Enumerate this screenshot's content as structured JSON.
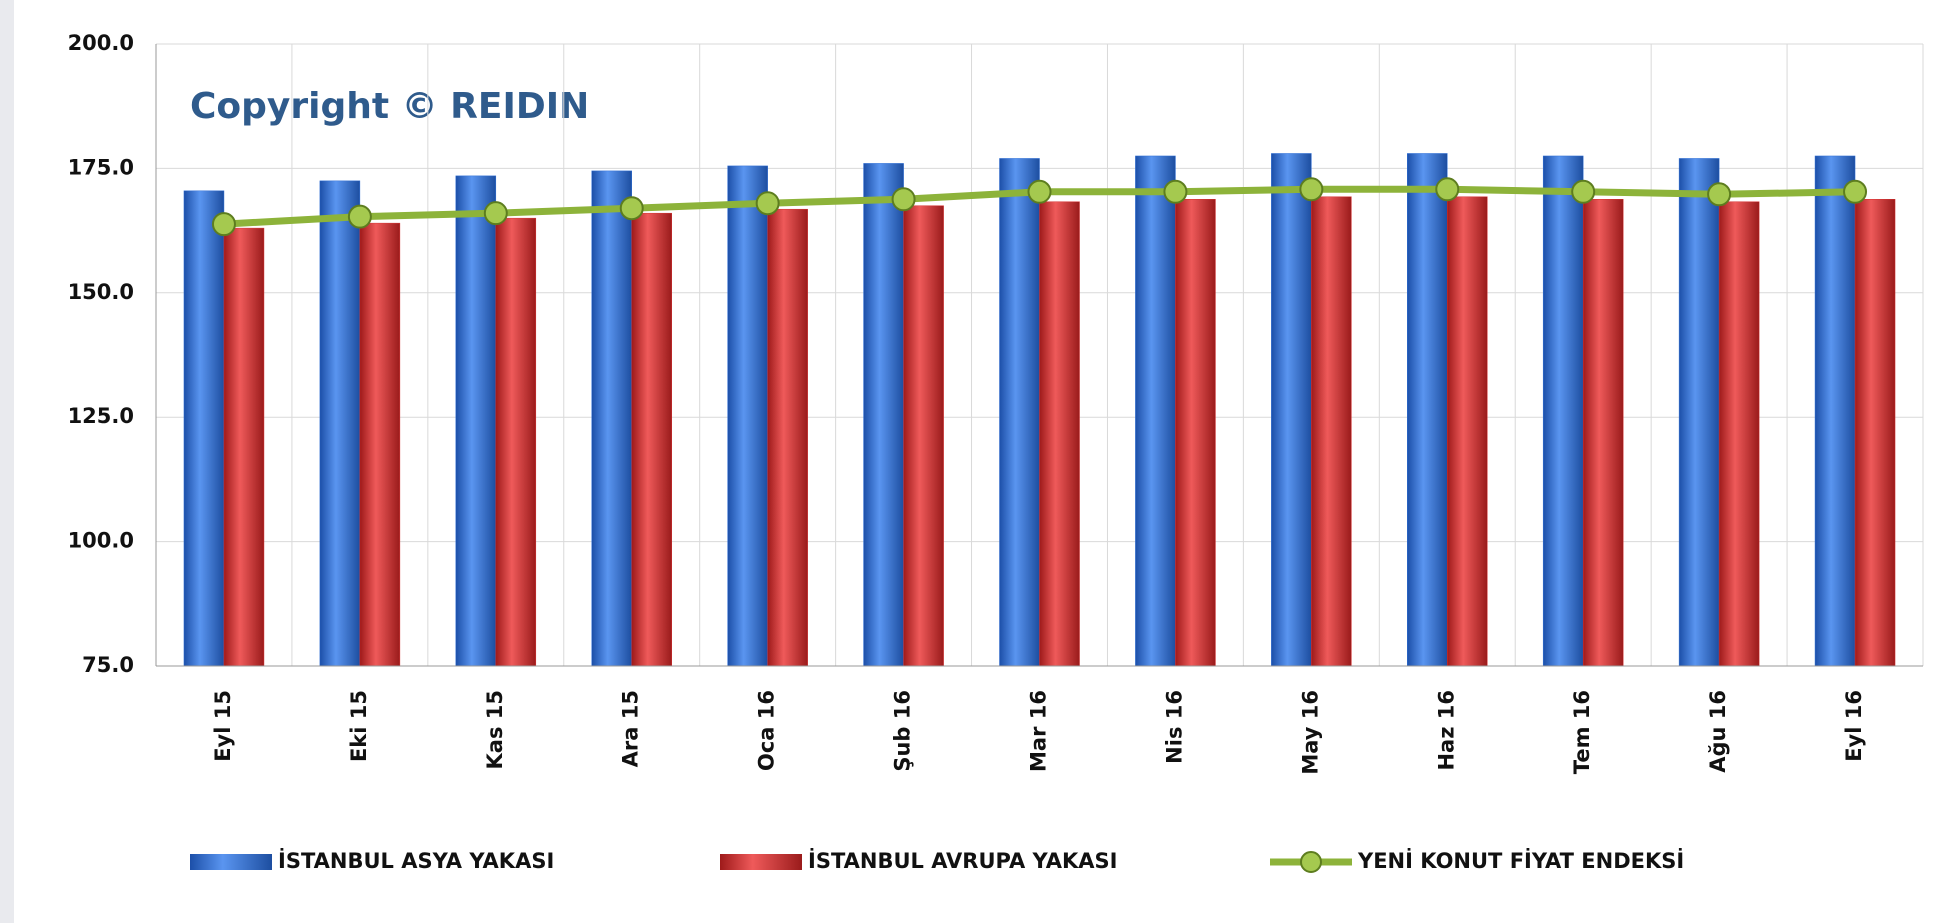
{
  "chart_data": {
    "type": "bar",
    "annotation": "Copyright © REIDIN",
    "categories": [
      "Eyl 15",
      "Eki 15",
      "Kas 15",
      "Ara 15",
      "Oca 16",
      "Şub 16",
      "Mar 16",
      "Nis 16",
      "May 16",
      "Haz 16",
      "Tem 16",
      "Ağu 16",
      "Eyl 16"
    ],
    "series": [
      {
        "name": "İSTANBUL ASYA YAKASI",
        "color": "#2f6fd6",
        "type": "bar",
        "values": [
          170.5,
          172.5,
          173.5,
          174.5,
          175.5,
          176,
          177,
          177.5,
          178,
          178,
          177.5,
          177,
          177.5
        ]
      },
      {
        "name": "İSTANBUL AVRUPA YAKASI",
        "color": "#d42f2f",
        "type": "bar",
        "values": [
          163,
          164,
          165,
          166,
          166.8,
          167.5,
          168.3,
          168.8,
          169.3,
          169.3,
          168.8,
          168.3,
          168.8
        ]
      },
      {
        "name": "YENİ KONUT FİYAT ENDEKSİ",
        "color": "#8db33a",
        "type": "line",
        "values": [
          163.8,
          165.3,
          166,
          167,
          168,
          168.8,
          170.3,
          170.3,
          170.8,
          170.8,
          170.3,
          169.8,
          170.3
        ]
      }
    ],
    "ylim": [
      75,
      200
    ],
    "yticks": [
      {
        "value": 75,
        "label": "75.0"
      },
      {
        "value": 100,
        "label": "100.0"
      },
      {
        "value": 125,
        "label": "125.0"
      },
      {
        "value": 150,
        "label": "150.0"
      },
      {
        "value": 175,
        "label": "175.0"
      },
      {
        "value": 200,
        "label": "200.0"
      }
    ],
    "grid": true,
    "legend": "bottom"
  }
}
